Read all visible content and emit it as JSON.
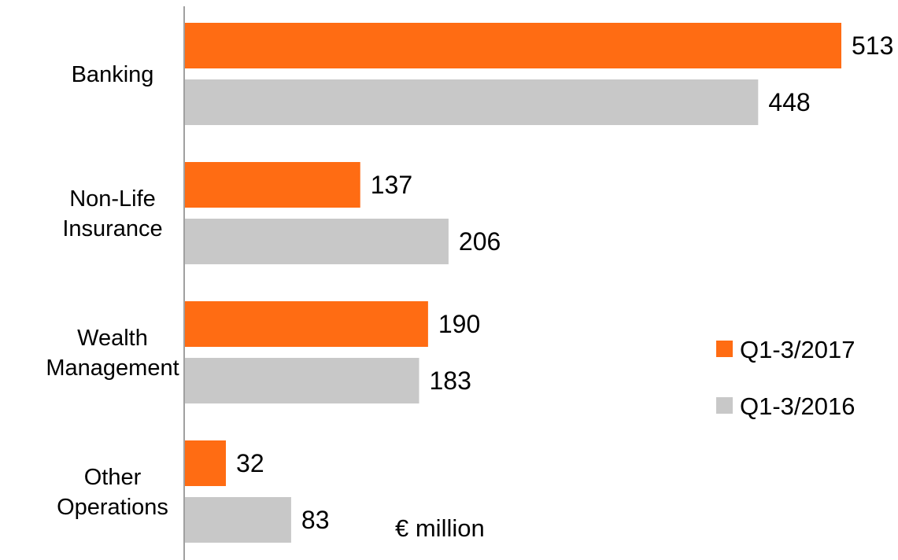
{
  "chart_data": {
    "type": "bar",
    "orientation": "horizontal",
    "categories": [
      [
        "Banking"
      ],
      [
        "Non-Life",
        "Insurance"
      ],
      [
        "Wealth",
        "Management"
      ],
      [
        "Other",
        "Operations"
      ]
    ],
    "series": [
      {
        "name": "Q1-3/2017",
        "values": [
          513,
          137,
          190,
          32
        ],
        "color": "#ff6c13"
      },
      {
        "name": "Q1-3/2016",
        "values": [
          448,
          206,
          183,
          83
        ],
        "color": "#c8c8c8"
      }
    ],
    "xlim": [
      0,
      513
    ],
    "unit_label": "€ million",
    "legend_position": "right",
    "grid": false
  }
}
